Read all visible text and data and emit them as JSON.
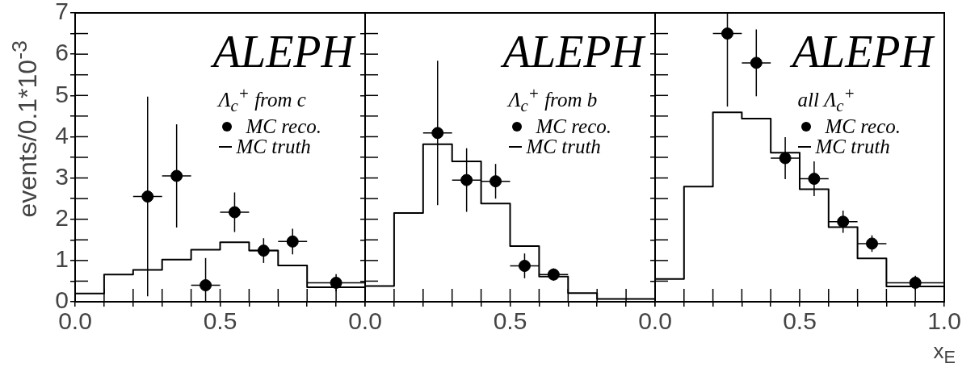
{
  "chart_data": [
    {
      "type": "histogram",
      "title": "ALEPH",
      "legend_title": "Λ$_{c}$$^{+}$ from c",
      "ylabel": "events/0.1*10$^{-3}$",
      "legend": "top right",
      "grid": false,
      "xlim": [
        0,
        1
      ],
      "ylim": [
        0,
        7
      ],
      "xticks": [
        {
          "value": 0,
          "label": "0.0"
        },
        {
          "value": 0.1,
          "label": null
        },
        {
          "value": 0.2,
          "label": null
        },
        {
          "value": 0.3,
          "label": null
        },
        {
          "value": 0.4,
          "label": null
        },
        {
          "value": 0.5,
          "label": "0.5"
        },
        {
          "value": 0.6,
          "label": null
        },
        {
          "value": 0.7,
          "label": null
        },
        {
          "value": 0.8,
          "label": null
        },
        {
          "value": 0.9,
          "label": null
        },
        {
          "value": 1,
          "label": null
        }
      ],
      "yticks": [
        0,
        {
          "value": 0.5,
          "label": null
        },
        1,
        {
          "value": 1.5,
          "label": null
        },
        2,
        {
          "value": 2.5,
          "label": null
        },
        3,
        {
          "value": 3.5,
          "label": null
        },
        4,
        {
          "value": 4.5,
          "label": null
        },
        5,
        {
          "value": 5.5,
          "label": null
        },
        6,
        {
          "value": 6.5,
          "label": null
        },
        7
      ],
      "series": [
        {
          "type": "scatter",
          "name": "MC reco.",
          "color": "#000000",
          "marker": "circle",
          "x": [
            0.25,
            0.35,
            0.45,
            0.55,
            0.65,
            0.75,
            0.9
          ],
          "values": [
            2.55,
            3.05,
            0.4,
            2.17,
            1.24,
            1.46,
            0.46
          ],
          "errors": [
            2.42,
            1.25,
            [
              0,
              1.06
            ],
            0.48,
            0.3,
            0.31,
            0.21
          ],
          "xerrors": [
            0.05,
            0.05,
            0.05,
            0.05,
            0.05,
            0.05,
            0.1
          ]
        },
        {
          "type": "histogram",
          "name": "MC truth",
          "color": "#000000",
          "bins": [
            0,
            0.1,
            0.2,
            0.3,
            0.4,
            0.5,
            0.6,
            0.7,
            0.8,
            1.0
          ],
          "values": [
            0.2,
            0.66,
            0.77,
            1.02,
            1.26,
            1.44,
            1.24,
            0.88,
            0.35
          ]
        }
      ]
    },
    {
      "type": "histogram",
      "title": "ALEPH",
      "legend_title": "Λ$_{c}$$^{+}$ from b",
      "legend": "top right",
      "grid": false,
      "tick_labels": "x",
      "xlim": [
        0,
        1
      ],
      "ylim": [
        0,
        7
      ],
      "xticks": [
        {
          "value": 0,
          "label": "0.0"
        },
        {
          "value": 0.1,
          "label": null
        },
        {
          "value": 0.2,
          "label": null
        },
        {
          "value": 0.3,
          "label": null
        },
        {
          "value": 0.4,
          "label": null
        },
        {
          "value": 0.5,
          "label": "0.5"
        },
        {
          "value": 0.6,
          "label": null
        },
        {
          "value": 0.7,
          "label": null
        },
        {
          "value": 0.8,
          "label": null
        },
        {
          "value": 0.9,
          "label": null
        },
        {
          "value": 1,
          "label": null
        }
      ],
      "yticks": [
        0,
        {
          "value": 0.5,
          "label": null
        },
        1,
        {
          "value": 1.5,
          "label": null
        },
        2,
        {
          "value": 2.5,
          "label": null
        },
        3,
        {
          "value": 3.5,
          "label": null
        },
        4,
        {
          "value": 4.5,
          "label": null
        },
        5,
        {
          "value": 5.5,
          "label": null
        },
        6,
        {
          "value": 6.5,
          "label": null
        },
        7
      ],
      "series": [
        {
          "type": "scatter",
          "name": "MC reco.",
          "color": "#000000",
          "marker": "circle",
          "x": [
            0.25,
            0.35,
            0.45,
            0.55,
            0.65
          ],
          "values": [
            4.09,
            2.95,
            2.92,
            0.87,
            0.66
          ],
          "errors": [
            1.75,
            0.77,
            0.42,
            0.3,
            0.15
          ],
          "xerrors": [
            0.05,
            0.05,
            0.05,
            0.05,
            0.05
          ]
        },
        {
          "type": "histogram",
          "name": "MC truth",
          "color": "#000000",
          "bins": [
            0,
            0.1,
            0.2,
            0.3,
            0.4,
            0.5,
            0.6,
            0.7,
            0.8,
            1.0
          ],
          "values": [
            0.38,
            2.15,
            3.82,
            3.4,
            2.38,
            1.35,
            0.61,
            0.21,
            0.07
          ]
        }
      ]
    },
    {
      "type": "histogram",
      "title": "ALEPH",
      "legend_title": "all Λ$_{c}$$^{+}$",
      "xlabel": "x$_{E}$",
      "legend": "top right",
      "grid": false,
      "tick_labels": "x",
      "xlim": [
        0,
        1
      ],
      "ylim": [
        0,
        7
      ],
      "xticks": [
        {
          "value": 0,
          "label": "0.0"
        },
        {
          "value": 0.1,
          "label": null
        },
        {
          "value": 0.2,
          "label": null
        },
        {
          "value": 0.3,
          "label": null
        },
        {
          "value": 0.4,
          "label": null
        },
        {
          "value": 0.5,
          "label": "0.5"
        },
        {
          "value": 0.6,
          "label": null
        },
        {
          "value": 0.7,
          "label": null
        },
        {
          "value": 0.8,
          "label": null
        },
        {
          "value": 0.9,
          "label": null
        },
        {
          "value": 1,
          "label": "1.0"
        }
      ],
      "yticks": [
        0,
        {
          "value": 0.5,
          "label": null
        },
        1,
        {
          "value": 1.5,
          "label": null
        },
        2,
        {
          "value": 2.5,
          "label": null
        },
        3,
        {
          "value": 3.5,
          "label": null
        },
        4,
        {
          "value": 4.5,
          "label": null
        },
        5,
        {
          "value": 5.5,
          "label": null
        },
        6,
        {
          "value": 6.5,
          "label": null
        },
        7
      ],
      "series": [
        {
          "type": "scatter",
          "name": "MC reco.",
          "color": "#000000",
          "marker": "circle",
          "x": [
            0.25,
            0.35,
            0.45,
            0.55,
            0.65,
            0.75,
            0.9
          ],
          "values": [
            6.5,
            5.79,
            3.48,
            2.98,
            1.94,
            1.41,
            0.46
          ],
          "errors": [
            [
              4.73,
              7
            ],
            0.81,
            0.51,
            0.42,
            0.27,
            0.2,
            0.17
          ],
          "xerrors": [
            0.05,
            0.05,
            0.05,
            0.05,
            0.05,
            0.05,
            0.1
          ]
        },
        {
          "type": "histogram",
          "name": "MC truth",
          "color": "#000000",
          "bins": [
            0,
            0.1,
            0.2,
            0.3,
            0.4,
            0.5,
            0.6,
            0.7,
            0.8,
            1.0
          ],
          "values": [
            0.55,
            2.79,
            4.59,
            4.44,
            3.61,
            2.73,
            1.81,
            1.05,
            0.37
          ]
        }
      ]
    }
  ]
}
